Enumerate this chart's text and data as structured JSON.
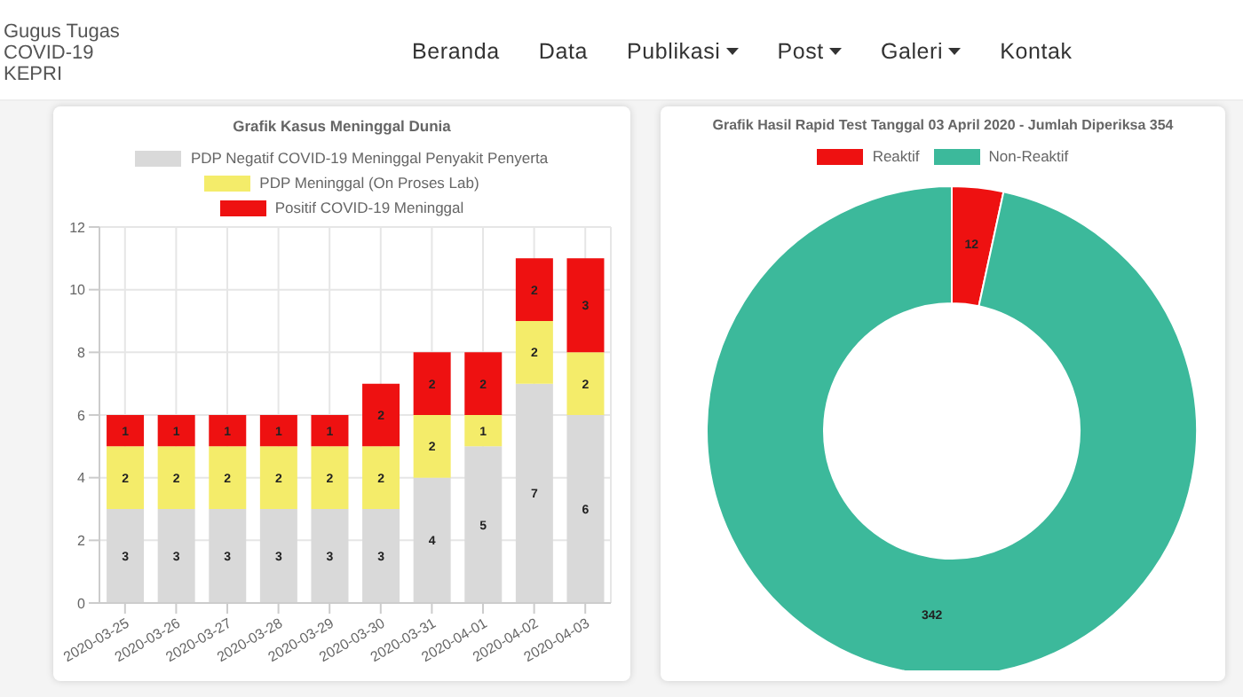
{
  "chart_data": [
    {
      "type": "other",
      "title": "Gugus Tugas COVID-19 KEPRI",
      "annotations": [
        "Beranda",
        "Data",
        "Publikasi",
        "Post",
        "Galeri",
        "Kontak"
      ]
    },
    {
      "type": "bar",
      "title": "Grafik Kasus Meninggal Dunia",
      "stacked": true,
      "categories": [
        "2020-03-25",
        "2020-03-26",
        "2020-03-27",
        "2020-03-28",
        "2020-03-29",
        "2020-03-30",
        "2020-03-31",
        "2020-04-01",
        "2020-04-02",
        "2020-04-03"
      ],
      "series": [
        {
          "name": "PDP Negatif COVID-19 Meninggal Penyakit Penyerta",
          "color": "#d9d9d9",
          "values": [
            3,
            3,
            3,
            3,
            3,
            3,
            4,
            5,
            7,
            6
          ]
        },
        {
          "name": "PDP Meninggal (On Proses Lab)",
          "color": "#f4ec6a",
          "values": [
            2,
            2,
            2,
            2,
            2,
            2,
            2,
            1,
            2,
            2
          ]
        },
        {
          "name": "Positif COVID-19 Meninggal",
          "color": "#ee1111",
          "values": [
            1,
            1,
            1,
            1,
            1,
            2,
            2,
            2,
            2,
            3
          ]
        }
      ],
      "ylim": [
        0,
        12
      ],
      "yticks": [
        0,
        2,
        4,
        6,
        8,
        10,
        12
      ],
      "grid": true,
      "legend": "top",
      "data_labels": true
    },
    {
      "type": "donut",
      "title": "Grafik Hasil Rapid Test Tanggal 03 April 2020 - Jumlah Diperiksa 354",
      "categories": [
        "Reaktif",
        "Non-Reaktif"
      ],
      "values": [
        12,
        342
      ],
      "colors": [
        "#ee1111",
        "#3cb99b"
      ],
      "legend": "top",
      "data_labels": true
    }
  ]
}
